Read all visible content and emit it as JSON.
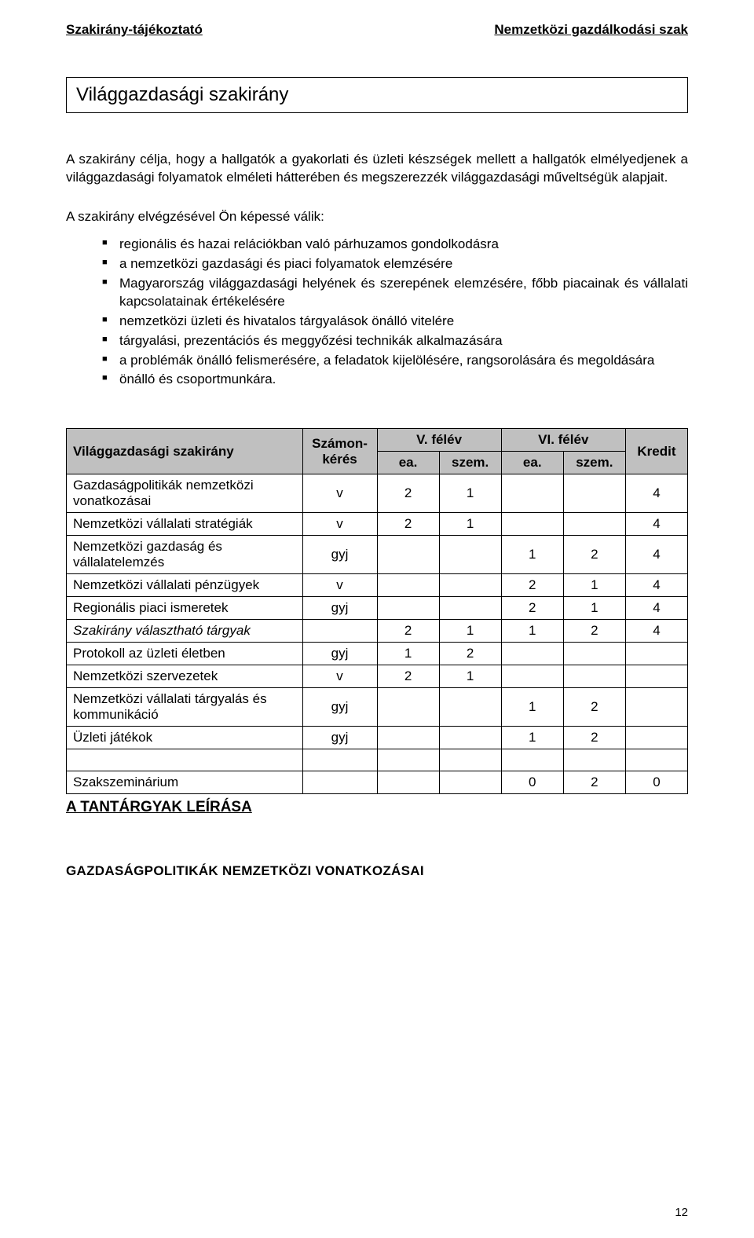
{
  "header": {
    "left": "Szakirány-tájékoztató",
    "right": "Nemzetközi gazdálkodási szak"
  },
  "title": "Világgazdasági szakirány",
  "intro": "A szakirány célja, hogy a hallgatók a gyakorlati és üzleti készségek mellett a hallgatók elmélyedjenek a világgazdasági folyamatok elméleti hátterében és megszerezzék világgazdasági műveltségük alapjait.",
  "lead": "A szakirány elvégzésével Ön képessé válik:",
  "bullets": [
    "regionális és hazai relációkban való párhuzamos gondolkodásra",
    "a nemzetközi gazdasági és piaci folyamatok elemzésére",
    "Magyarország világgazdasági helyének és szerepének elemzésére, főbb piacainak és vállalati kapcsolatainak értékelésére",
    "nemzetközi üzleti és hivatalos tárgyalások önálló vitelére",
    "tárgyalási, prezentációs és meggyőzési technikák alkalmazására",
    "a problémák önálló felismerésére, a feladatok kijelölésére, rangsorolására és megoldására",
    "önálló és csoportmunkára."
  ],
  "table": {
    "headers": {
      "subject": "Világgazdasági szakirány",
      "exam": "Számon-kérés",
      "sem5": "V. félév",
      "sem6": "VI. félév",
      "ea": "ea.",
      "szem": "szem.",
      "credit": "Kredit"
    },
    "rows": [
      {
        "subject": "Gazdaságpolitikák nemzetközi vonatkozásai",
        "exam": "v",
        "v_ea": "2",
        "v_szem": "1",
        "vi_ea": "",
        "vi_szem": "",
        "credit": "4"
      },
      {
        "subject": "Nemzetközi vállalati stratégiák",
        "exam": "v",
        "v_ea": "2",
        "v_szem": "1",
        "vi_ea": "",
        "vi_szem": "",
        "credit": "4"
      },
      {
        "subject": "Nemzetközi gazdaság és vállalatelemzés",
        "exam": "gyj",
        "v_ea": "",
        "v_szem": "",
        "vi_ea": "1",
        "vi_szem": "2",
        "credit": "4"
      },
      {
        "subject": "Nemzetközi vállalati pénzügyek",
        "exam": "v",
        "v_ea": "",
        "v_szem": "",
        "vi_ea": "2",
        "vi_szem": "1",
        "credit": "4"
      },
      {
        "subject": "Regionális piaci ismeretek",
        "exam": "gyj",
        "v_ea": "",
        "v_szem": "",
        "vi_ea": "2",
        "vi_szem": "1",
        "credit": "4"
      },
      {
        "subject": "Szakirány választható tárgyak",
        "exam": "",
        "v_ea": "2",
        "v_szem": "1",
        "vi_ea": "1",
        "vi_szem": "2",
        "credit": "4",
        "italic": true
      },
      {
        "subject": "Protokoll az üzleti életben",
        "exam": "gyj",
        "v_ea": "1",
        "v_szem": "2",
        "vi_ea": "",
        "vi_szem": "",
        "credit": ""
      },
      {
        "subject": "Nemzetközi szervezetek",
        "exam": "v",
        "v_ea": "2",
        "v_szem": "1",
        "vi_ea": "",
        "vi_szem": "",
        "credit": ""
      },
      {
        "subject": "Nemzetközi vállalati tárgyalás és kommunikáció",
        "exam": "gyj",
        "v_ea": "",
        "v_szem": "",
        "vi_ea": "1",
        "vi_szem": "2",
        "credit": ""
      },
      {
        "subject": "Üzleti játékok",
        "exam": "gyj",
        "v_ea": "",
        "v_szem": "",
        "vi_ea": "1",
        "vi_szem": "2",
        "credit": ""
      },
      {
        "blank": true
      },
      {
        "subject": "Szakszeminárium",
        "exam": "",
        "v_ea": "",
        "v_szem": "",
        "vi_ea": "0",
        "vi_szem": "2",
        "credit": "0"
      }
    ]
  },
  "section_link": "A TANTÁRGYAK LEÍRÁSA",
  "topic_heading": "GAZDASÁGPOLITIKÁK NEMZETKÖZI VONATKOZÁSAI",
  "page_number": "12",
  "colors": {
    "header_bg": "#c0c0c0",
    "border": "#000000",
    "text": "#000000",
    "page_bg": "#ffffff"
  },
  "col_widths_pct": [
    38,
    12,
    10,
    10,
    10,
    10,
    10
  ]
}
